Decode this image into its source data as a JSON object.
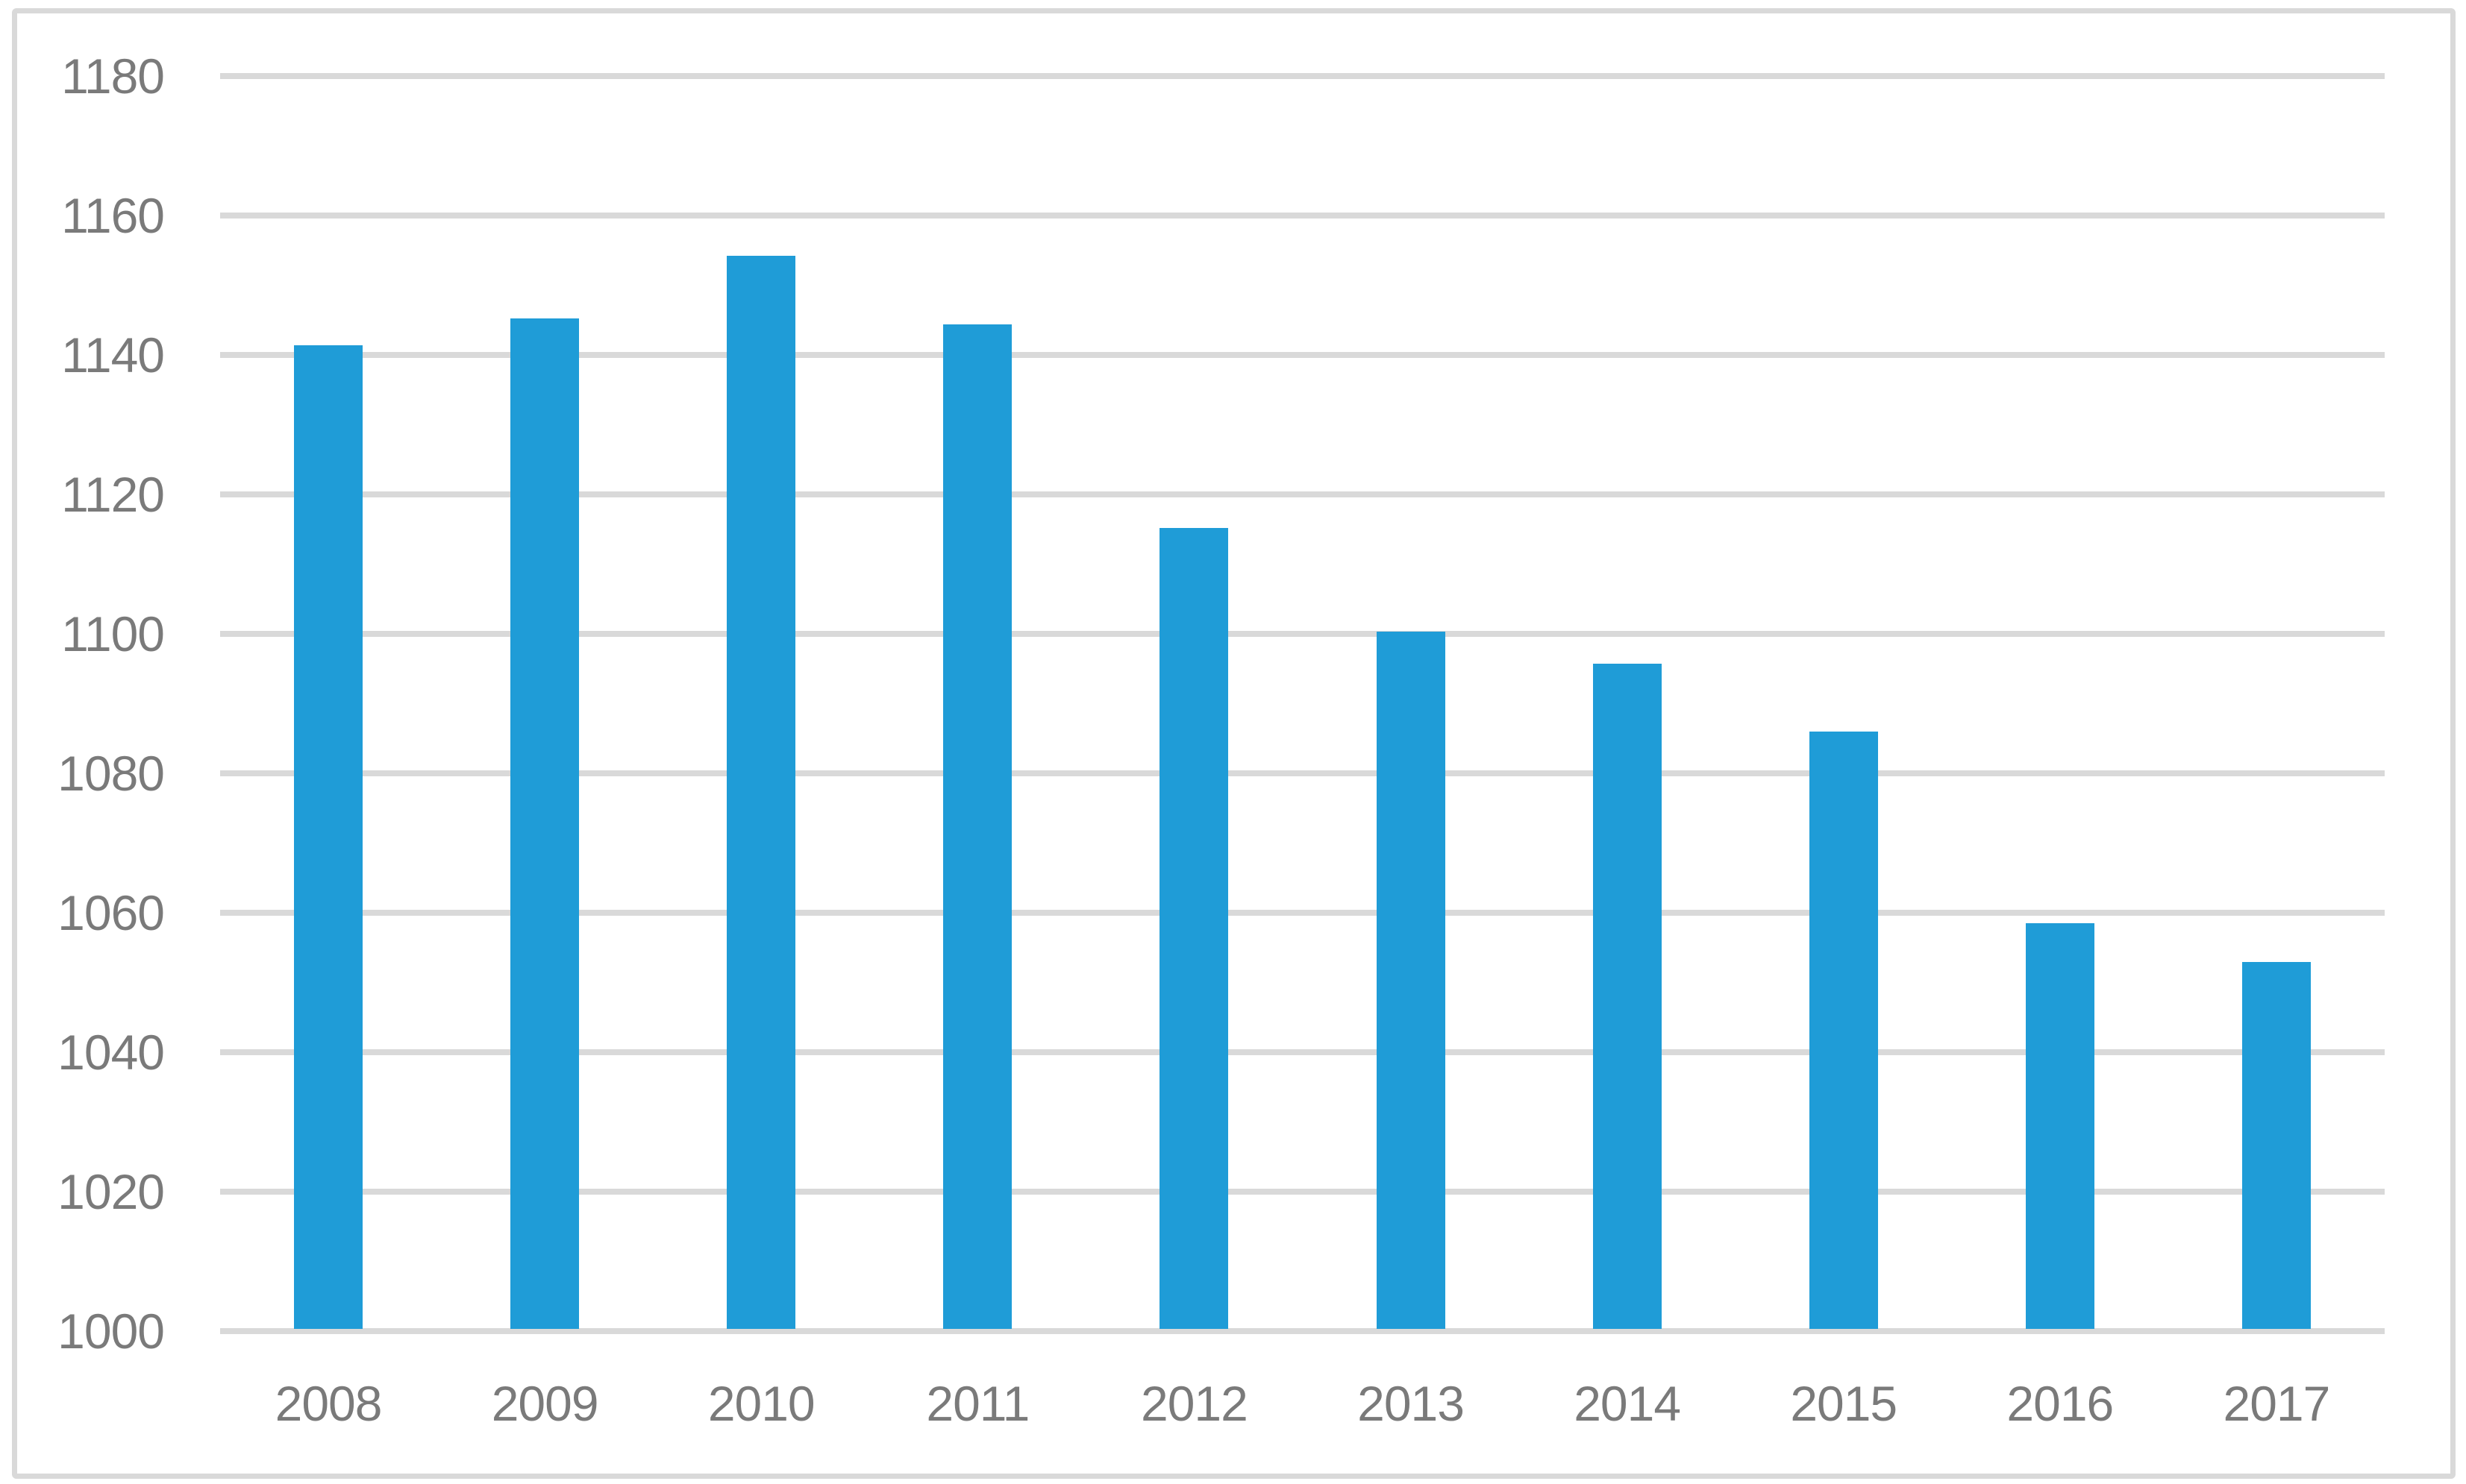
{
  "chart_data": {
    "type": "bar",
    "title": "",
    "xlabel": "",
    "ylabel": "",
    "categories": [
      "2008",
      "2009",
      "2010",
      "2011",
      "2012",
      "2013",
      "2014",
      "2015",
      "2016",
      "2017"
    ],
    "values": [
      1141.4,
      1145.2,
      1154.2,
      1144.4,
      1115.2,
      1100.3,
      1095.7,
      1086.0,
      1058.5,
      1052.9
    ],
    "ylim": [
      1000,
      1180
    ],
    "ytick_step": 20,
    "ytick_labels": [
      "1000",
      "1020",
      "1040",
      "1060",
      "1080",
      "1100",
      "1120",
      "1140",
      "1160",
      "1180"
    ],
    "grid": "horizontal",
    "legend": "none",
    "colors": {
      "bar": "#1F9CD7",
      "gridline": "#D9D9D9",
      "tick_text": "#7A7A7A",
      "frame_border": "#D9D9D9",
      "background": "#FFFFFF"
    }
  }
}
